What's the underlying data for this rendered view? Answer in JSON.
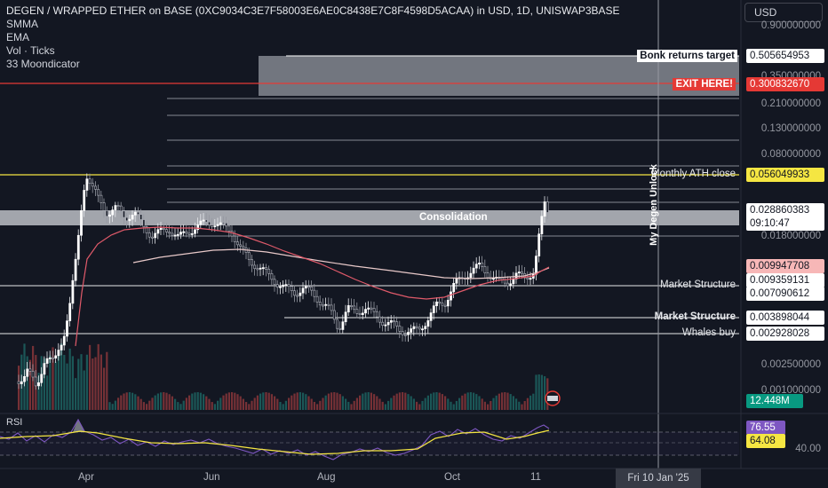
{
  "legend": {
    "title": "DEGEN / WRAPPED ETHER on BASE (0XC9034C3E7F58003E6AE0C8438E7C8F4598D5ACAA) in USD, 1D, UNISWAP3BASE",
    "indicators": [
      "SMMA",
      "EMA",
      "Vol · Ticks",
      "33 Moondicator"
    ]
  },
  "currency_button": "USD",
  "price_axis_ticks": [
    "0.900000000",
    "0.350000000",
    "0.210000000",
    "0.130000000",
    "0.080000000",
    "0.018000000",
    "0.002500000",
    "0.001000000",
    "40.00"
  ],
  "price_boxes": {
    "bonk": "0.505654953",
    "exit": "0.300832670",
    "ath": "0.056049933",
    "current": "0.028860383",
    "countdown": "09:10:47",
    "smma": "0.009947708",
    "ms1": "0.009359131",
    "ema": "0.007090612",
    "ms2": "0.003898044",
    "whales": "0.002928028",
    "volume": "12.448M",
    "rsi1": "76.55",
    "rsi2": "64.08"
  },
  "annotations": {
    "bonk": "Bonk returns target",
    "exit": "EXIT HERE!",
    "ath": "Monthly ATH close",
    "consolidation": "Consolidation",
    "ms1": "Market Structure",
    "ms2": "Market Structure",
    "whales": "Whales buy",
    "unlock": "My Degen Unlock"
  },
  "rsi_label": "RSI",
  "time_axis": [
    "Apr",
    "Jun",
    "Aug",
    "Oct",
    "11"
  ],
  "crosshair_date": "Fri 10 Jan '25",
  "colors": {
    "background": "#131722",
    "up": "#e6e8ec",
    "red_line": "#e53935",
    "yellow_line": "#f5e642",
    "smma_line": "#e8c9c9",
    "ema_line": "#e05a6a",
    "rsi_line": "#7e57c2",
    "rsi_ma": "#f5e642",
    "volume_up": "#26a69a",
    "volume_box": "#089981",
    "smma_box": "#f7b7b7"
  }
}
